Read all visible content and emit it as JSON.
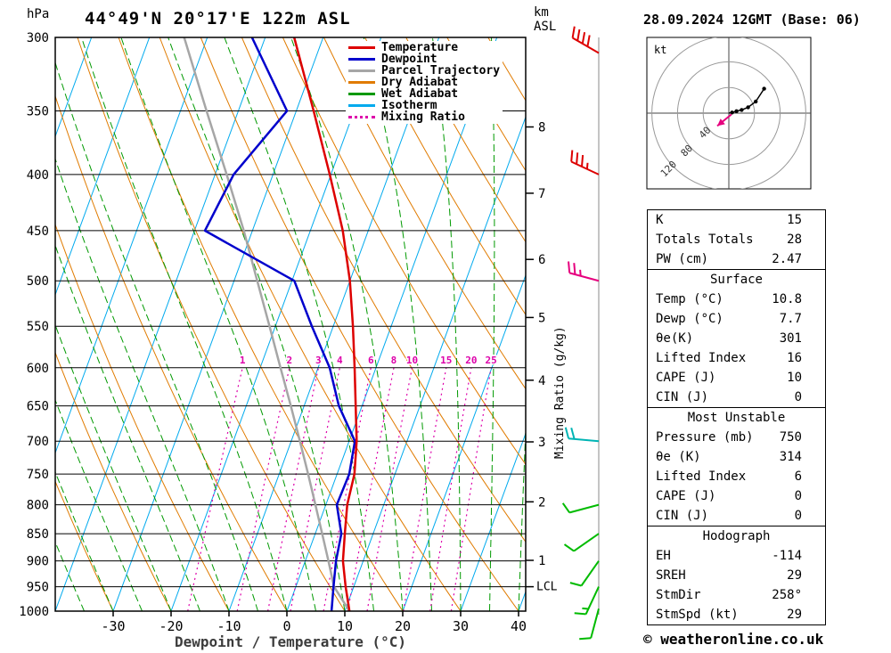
{
  "header": {
    "title": "44°49'N 20°17'E 122m ASL",
    "datetime": "28.09.2024 12GMT (Base: 06)"
  },
  "axes": {
    "pressure_unit": "hPa",
    "altitude_unit_line1": "km",
    "altitude_unit_line2": "ASL",
    "x_title": "Dewpoint / Temperature (°C)",
    "mixing_ratio_title": "Mixing Ratio (g/kg)",
    "lcl_label": "LCL",
    "lcl_pressure": 950,
    "pressure_ticks": [
      300,
      350,
      400,
      450,
      500,
      550,
      600,
      650,
      700,
      750,
      800,
      850,
      900,
      950,
      1000
    ],
    "temp_ticks": [
      -30,
      -20,
      -10,
      0,
      10,
      20,
      30,
      40
    ],
    "km_ticks": [
      {
        "km": 1,
        "p": 899
      },
      {
        "km": 2,
        "p": 795
      },
      {
        "km": 3,
        "p": 701
      },
      {
        "km": 4,
        "p": 616
      },
      {
        "km": 5,
        "p": 540
      },
      {
        "km": 6,
        "p": 478
      },
      {
        "km": 7,
        "p": 416
      },
      {
        "km": 8,
        "p": 362
      }
    ]
  },
  "legend": {
    "items": [
      {
        "label": "Temperature",
        "color": "#dd0000",
        "line_style": "solid"
      },
      {
        "label": "Dewpoint",
        "color": "#0000cc",
        "line_style": "solid"
      },
      {
        "label": "Parcel Trajectory",
        "color": "#a6a6a6",
        "line_style": "solid"
      },
      {
        "label": "Dry Adiabat",
        "color": "#e07b00",
        "line_style": "solid"
      },
      {
        "label": "Wet Adiabat",
        "color": "#009900",
        "line_style": "solid"
      },
      {
        "label": "Isotherm",
        "color": "#00aaee",
        "line_style": "solid"
      },
      {
        "label": "Mixing Ratio",
        "color": "#dd00aa",
        "line_style": "dotted"
      }
    ]
  },
  "chart_data": {
    "type": "skewt_log_p",
    "pressure_range": [
      300,
      1000
    ],
    "temp_axis_range": [
      -40,
      41
    ],
    "grid": "on",
    "colors": {
      "isotherm": "#00aaee",
      "dry_adiabat": "#e07b00",
      "wet_adiabat": "#009900",
      "mixing_ratio": "#dd00aa"
    },
    "mixing_ratio_lines": [
      1,
      2,
      3,
      4,
      6,
      8,
      10,
      15,
      20,
      25
    ],
    "series": [
      {
        "name": "Temperature",
        "color": "#dd0000",
        "points": [
          [
            1000,
            10.8
          ],
          [
            950,
            8.6
          ],
          [
            900,
            6.5
          ],
          [
            850,
            5.1
          ],
          [
            800,
            3.7
          ],
          [
            750,
            3.0
          ],
          [
            700,
            1.3
          ],
          [
            650,
            -1.1
          ],
          [
            600,
            -3.7
          ],
          [
            550,
            -6.6
          ],
          [
            500,
            -10.0
          ],
          [
            450,
            -14.4
          ],
          [
            400,
            -20.2
          ],
          [
            350,
            -27.0
          ],
          [
            300,
            -35.0
          ]
        ]
      },
      {
        "name": "Dewpoint",
        "color": "#0000cc",
        "points": [
          [
            1000,
            7.7
          ],
          [
            950,
            6.5
          ],
          [
            900,
            5.3
          ],
          [
            850,
            4.5
          ],
          [
            800,
            1.9
          ],
          [
            750,
            2.1
          ],
          [
            700,
            1.0
          ],
          [
            650,
            -4.0
          ],
          [
            600,
            -8.0
          ],
          [
            550,
            -13.7
          ],
          [
            500,
            -19.6
          ],
          [
            450,
            -38.2
          ],
          [
            400,
            -36.8
          ],
          [
            350,
            -31.6
          ],
          [
            300,
            -42.3
          ]
        ]
      },
      {
        "name": "Parcel Trajectory",
        "color": "#a6a6a6",
        "points": [
          [
            1000,
            10.8
          ],
          [
            950,
            6.6
          ],
          [
            900,
            4.0
          ],
          [
            850,
            1.2
          ],
          [
            800,
            -1.8
          ],
          [
            750,
            -5.0
          ],
          [
            700,
            -8.5
          ],
          [
            650,
            -12.3
          ],
          [
            600,
            -16.5
          ],
          [
            550,
            -21.0
          ],
          [
            500,
            -26.0
          ],
          [
            450,
            -31.5
          ],
          [
            400,
            -38.0
          ],
          [
            350,
            -45.5
          ],
          [
            300,
            -54.0
          ]
        ]
      }
    ],
    "wind_barbs": [
      {
        "p": 310,
        "speed": 40,
        "dir": 300,
        "color": "#dd0000"
      },
      {
        "p": 400,
        "speed": 35,
        "dir": 295,
        "color": "#dd0000"
      },
      {
        "p": 500,
        "speed": 25,
        "dir": 285,
        "color": "#e6007e"
      },
      {
        "p": 700,
        "speed": 20,
        "dir": 275,
        "color": "#00b4b4"
      },
      {
        "p": 800,
        "speed": 10,
        "dir": 255,
        "color": "#00bb00"
      },
      {
        "p": 850,
        "speed": 10,
        "dir": 235,
        "color": "#00bb00"
      },
      {
        "p": 900,
        "speed": 10,
        "dir": 215,
        "color": "#00bb00"
      },
      {
        "p": 950,
        "speed": 15,
        "dir": 205,
        "color": "#00bb00"
      },
      {
        "p": 995,
        "speed": 10,
        "dir": 195,
        "color": "#00bb00"
      }
    ]
  },
  "hodograph": {
    "unit_label": "kt",
    "rings": [
      40,
      80,
      120
    ],
    "trace_uv": [
      [
        0,
        0
      ],
      [
        5,
        1
      ],
      [
        12,
        3
      ],
      [
        20,
        5
      ],
      [
        30,
        9
      ],
      [
        42,
        18
      ],
      [
        55,
        38
      ]
    ],
    "storm_arrow_uv": {
      "from": [
        4,
        -2
      ],
      "to": [
        -18,
        -20
      ]
    },
    "storm_color": "#e6007e"
  },
  "tables": {
    "indices": {
      "rows": [
        {
          "label": "K",
          "value": "15"
        },
        {
          "label": "Totals Totals",
          "value": "28"
        },
        {
          "label": "PW (cm)",
          "value": "2.47"
        }
      ]
    },
    "surface": {
      "title": "Surface",
      "rows": [
        {
          "label": "Temp (°C)",
          "value": "10.8"
        },
        {
          "label": "Dewp (°C)",
          "value": "7.7"
        },
        {
          "label": "θe(K)",
          "value": "301"
        },
        {
          "label": "Lifted Index",
          "value": "16"
        },
        {
          "label": "CAPE (J)",
          "value": "10"
        },
        {
          "label": "CIN (J)",
          "value": "0"
        }
      ]
    },
    "most_unstable": {
      "title": "Most Unstable",
      "rows": [
        {
          "label": "Pressure (mb)",
          "value": "750"
        },
        {
          "label": "θe (K)",
          "value": "314"
        },
        {
          "label": "Lifted Index",
          "value": "6"
        },
        {
          "label": "CAPE (J)",
          "value": "0"
        },
        {
          "label": "CIN (J)",
          "value": "0"
        }
      ]
    },
    "hodograph": {
      "title": "Hodograph",
      "rows": [
        {
          "label": "EH",
          "value": "-114"
        },
        {
          "label": "SREH",
          "value": "29"
        },
        {
          "label": "StmDir",
          "value": "258°"
        },
        {
          "label": "StmSpd (kt)",
          "value": "29"
        }
      ]
    }
  },
  "footer": {
    "copyright": "© weatheronline.co.uk"
  }
}
